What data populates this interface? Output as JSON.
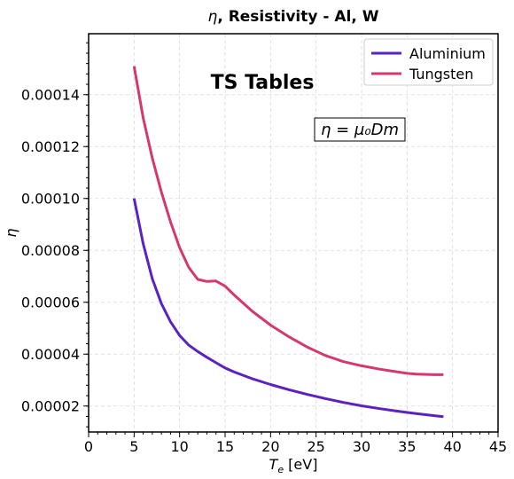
{
  "chart_data": {
    "type": "line",
    "title": "η, Resistivity - Al, W",
    "xlabel": "T_e [eV]",
    "ylabel": "η",
    "xlim": [
      0,
      45
    ],
    "ylim": [
      1e-05,
      0.0001635
    ],
    "xticks": [
      "0",
      "5",
      "10",
      "15",
      "20",
      "25",
      "30",
      "35",
      "40",
      "45"
    ],
    "xtick_values": [
      0,
      5,
      10,
      15,
      20,
      25,
      30,
      35,
      40,
      45
    ],
    "yticks": [
      "0.00002",
      "0.00004",
      "0.00006",
      "0.00008",
      "0.00010",
      "0.00012",
      "0.00014"
    ],
    "ytick_values": [
      2e-05,
      4e-05,
      6e-05,
      8e-05,
      0.0001,
      0.00012,
      0.00014
    ],
    "grid": true,
    "legend_position": "top-right",
    "annotations": {
      "watermark": "TS Tables",
      "formula": "η = μ₀Dm"
    },
    "series": [
      {
        "name": "Aluminium",
        "color": "#5b22bf",
        "x": [
          5,
          6,
          7,
          8,
          9,
          10,
          11,
          12,
          13,
          14,
          15,
          16,
          18,
          20,
          22,
          24,
          26,
          28,
          30,
          32,
          34,
          36,
          38,
          39
        ],
        "y": [
          0.0001,
          8.25e-05,
          6.9e-05,
          5.95e-05,
          5.25e-05,
          4.72e-05,
          4.35e-05,
          4.1e-05,
          3.88e-05,
          3.67e-05,
          3.47e-05,
          3.31e-05,
          3.05e-05,
          2.83e-05,
          2.63e-05,
          2.45e-05,
          2.29e-05,
          2.14e-05,
          2.01e-05,
          1.9e-05,
          1.8e-05,
          1.71e-05,
          1.63e-05,
          1.59e-05
        ]
      },
      {
        "name": "Tungsten",
        "color": "#d4386f",
        "x": [
          5,
          6,
          7,
          8,
          9,
          10,
          11,
          12,
          13,
          14,
          15,
          16,
          18,
          20,
          22,
          24,
          26,
          28,
          30,
          32,
          34,
          35,
          36,
          38,
          39
        ],
        "y": [
          0.000151,
          0.000131,
          0.0001155,
          0.0001025,
          9.1e-05,
          8.1e-05,
          7.35e-05,
          6.88e-05,
          6.8e-05,
          6.82e-05,
          6.62e-05,
          6.28e-05,
          5.65e-05,
          5.12e-05,
          4.67e-05,
          4.28e-05,
          3.95e-05,
          3.71e-05,
          3.55e-05,
          3.42e-05,
          3.31e-05,
          3.26e-05,
          3.23e-05,
          3.21e-05,
          3.21e-05
        ]
      }
    ]
  }
}
